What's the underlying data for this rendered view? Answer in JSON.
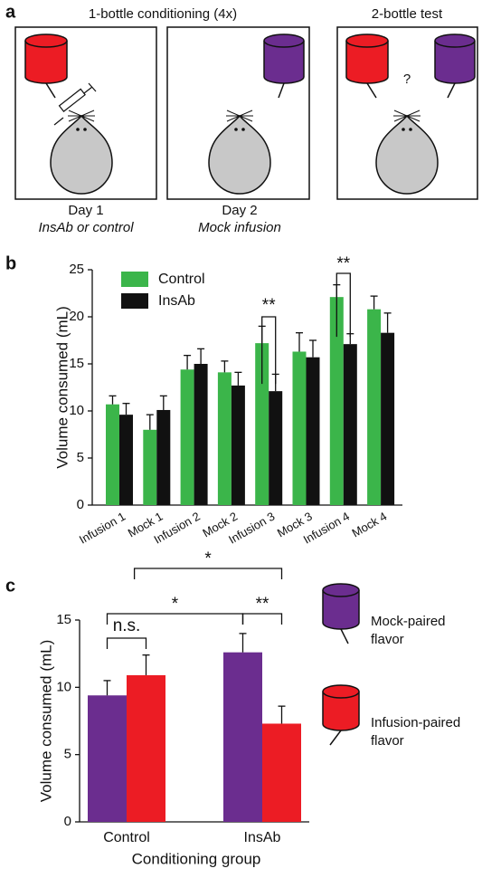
{
  "panel_labels": [
    "a",
    "b",
    "c"
  ],
  "diagram": {
    "conditioning_title": "1-bottle conditioning (4x)",
    "test_title": "2-bottle test",
    "day1": "Day 1",
    "day1_treatment": "InsAb or control",
    "day2": "Day 2",
    "day2_treatment": "Mock infusion",
    "question": "?"
  },
  "chart_data": [
    {
      "type": "bar",
      "ylabel": "Volume consumed (mL)",
      "categories": [
        "Infusion 1",
        "Mock 1",
        "Infusion 2",
        "Mock 2",
        "Infusion 3",
        "Mock 3",
        "Infusion 4",
        "Mock 4"
      ],
      "series": [
        {
          "name": "Control",
          "color": "#3bb54a",
          "values": [
            10.7,
            8.0,
            14.4,
            14.1,
            17.2,
            16.3,
            22.1,
            20.8
          ],
          "errors": [
            0.9,
            1.6,
            1.5,
            1.2,
            1.8,
            2.0,
            1.3,
            1.4
          ]
        },
        {
          "name": "InsAb",
          "color": "#111111",
          "values": [
            9.6,
            10.1,
            15.0,
            12.7,
            12.1,
            15.7,
            17.1,
            18.3
          ],
          "errors": [
            1.2,
            1.5,
            1.6,
            1.4,
            1.8,
            1.8,
            1.1,
            2.1
          ]
        }
      ],
      "ylim": [
        0,
        25
      ],
      "yticks": [
        0,
        5,
        10,
        15,
        20,
        25
      ],
      "legend": "top-left",
      "annotations": [
        "**",
        "**"
      ]
    },
    {
      "type": "bar",
      "ylabel": "Volume consumed (mL)",
      "xlabel": "Conditioning group",
      "categories": [
        "Control",
        "InsAb"
      ],
      "series": [
        {
          "name": "Mock-paired flavor",
          "color": "#6b2d8f",
          "values": [
            9.4,
            12.6
          ],
          "errors": [
            1.1,
            1.4
          ]
        },
        {
          "name": "Infusion-paired flavor",
          "color": "#ec1c24",
          "values": [
            10.9,
            7.3
          ],
          "errors": [
            1.5,
            1.3
          ]
        }
      ],
      "ylim": [
        0,
        15
      ],
      "yticks": [
        0,
        5,
        10,
        15
      ],
      "legend": "right",
      "annotations": [
        "n.s.",
        "*",
        "*",
        "**"
      ]
    }
  ]
}
